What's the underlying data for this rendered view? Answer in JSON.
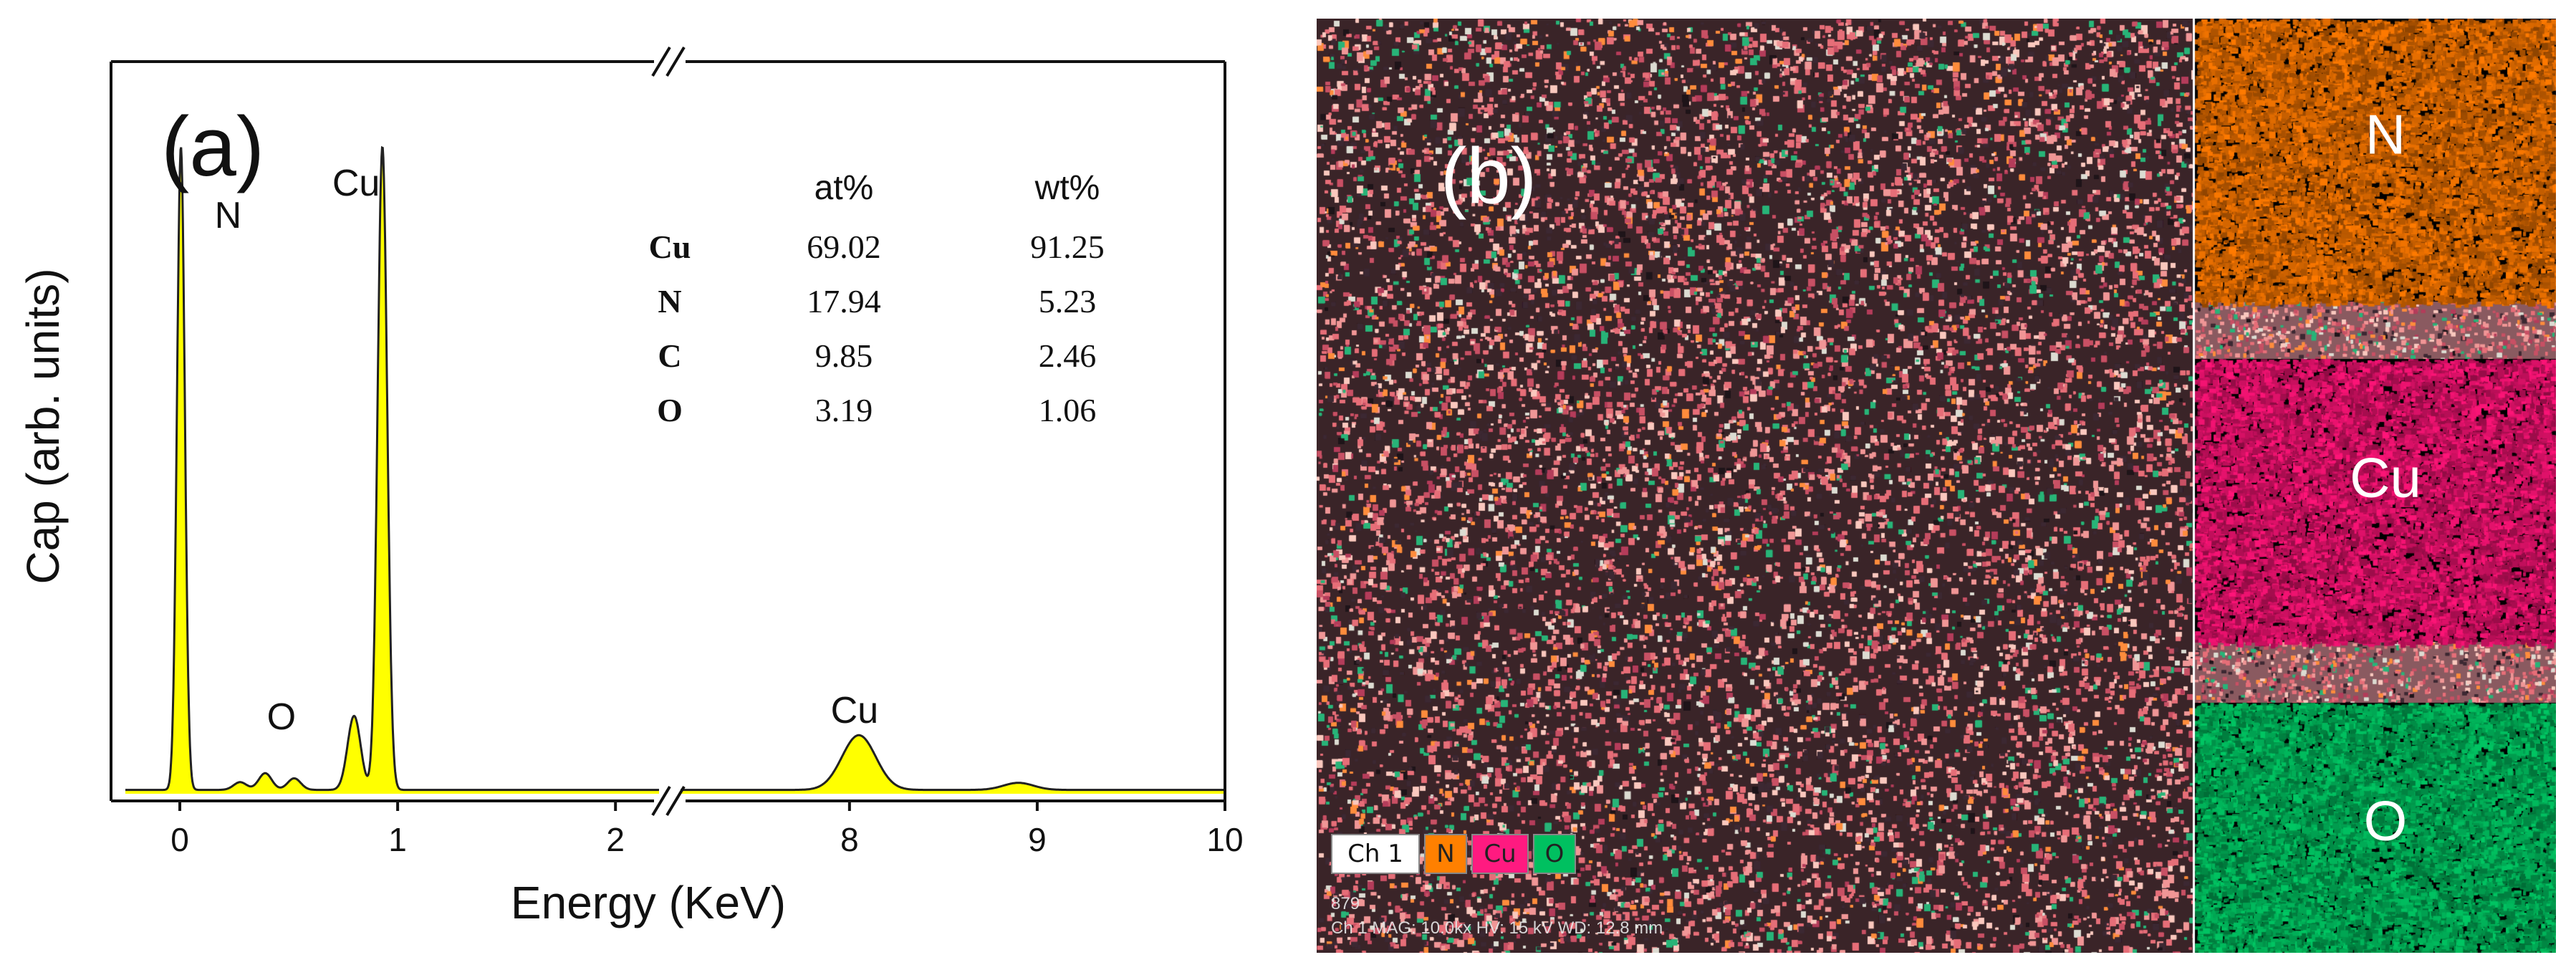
{
  "chart_data": {
    "type": "line",
    "panel_label": "(a)",
    "xlabel": "Energy (KeV)",
    "ylabel": "Cap (arb. units)",
    "axis_break": "between 2 and 8 keV",
    "segment_left": {
      "xlim": [
        -0.25,
        2.2
      ],
      "ticks": [
        "0",
        "1",
        "2"
      ]
    },
    "segment_right": {
      "xlim": [
        7.1,
        10
      ],
      "ticks": [
        "8",
        "9",
        "10"
      ]
    },
    "ylim": [
      0,
      100
    ],
    "fill_color": "#ffff00",
    "line_color": "#222222",
    "peaks": [
      {
        "x": 0.005,
        "height": 100,
        "width": 0.018
      },
      {
        "x": 0.277,
        "height": 1.2,
        "width": 0.03
      },
      {
        "x": 0.392,
        "height": 2.6,
        "width": 0.03
      },
      {
        "x": 0.525,
        "height": 1.8,
        "width": 0.03
      },
      {
        "x": 0.8,
        "height": 11.5,
        "width": 0.03
      },
      {
        "x": 0.93,
        "height": 100,
        "width": 0.022
      },
      {
        "x": 8.05,
        "height": 8.5,
        "width": 0.09
      },
      {
        "x": 8.9,
        "height": 1.1,
        "width": 0.08
      }
    ],
    "peak_labels": [
      {
        "text": "N",
        "x": 0.16,
        "y": 88
      },
      {
        "text": "O",
        "x": 0.4,
        "y": 10
      },
      {
        "text": "Cu",
        "x": 0.7,
        "y": 93
      },
      {
        "text": "Cu",
        "x": 7.9,
        "y": 11
      }
    ],
    "table": {
      "headers": [
        "",
        "at%",
        "wt%"
      ],
      "rows": [
        [
          "Cu",
          "69.02",
          "91.25"
        ],
        [
          "N",
          "17.94",
          "5.23"
        ],
        [
          "C",
          "9.85",
          "2.46"
        ],
        [
          "O",
          "3.19",
          "1.06"
        ]
      ]
    }
  },
  "map_panel": {
    "panel_label": "(b)",
    "legend": [
      "Ch 1",
      "N",
      "Cu",
      "O"
    ],
    "legend_colors": [
      "#ffffff",
      "#ff8000",
      "#ff1a80",
      "#00c060"
    ],
    "element_maps": [
      {
        "label": "N",
        "color": "#ff7a00"
      },
      {
        "label": "Cu",
        "color": "#ff1478"
      },
      {
        "label": "O",
        "color": "#00c864"
      }
    ],
    "status_line1": "879",
    "status_line2": "Ch 1   MAG: 10.0kx    HV: 15 kV    WD: 12.8 mm"
  }
}
